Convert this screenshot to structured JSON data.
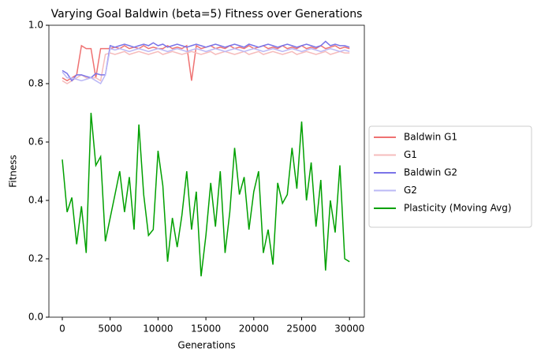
{
  "chart_data": {
    "type": "line",
    "title": "Varying Goal Baldwin (beta=5) Fitness over Generations",
    "x_label": "Generations",
    "y_label": "Fitness",
    "x": [
      0,
      500,
      1000,
      1500,
      2000,
      2500,
      3000,
      3500,
      4000,
      4500,
      5000,
      5500,
      6000,
      6500,
      7000,
      7500,
      8000,
      8500,
      9000,
      9500,
      10000,
      10500,
      11000,
      11500,
      12000,
      12500,
      13000,
      13500,
      14000,
      14500,
      15000,
      15500,
      16000,
      16500,
      17000,
      17500,
      18000,
      18500,
      19000,
      19500,
      20000,
      20500,
      21000,
      21500,
      22000,
      22500,
      23000,
      23500,
      24000,
      24500,
      25000,
      25500,
      26000,
      26500,
      27000,
      27500,
      28000,
      28500,
      29000,
      29500,
      30000
    ],
    "series": [
      {
        "name": "Baldwin G1",
        "color": "#ef7272",
        "values": [
          0.82,
          0.81,
          0.82,
          0.83,
          0.93,
          0.92,
          0.92,
          0.82,
          0.92,
          0.92,
          0.92,
          0.925,
          0.92,
          0.93,
          0.92,
          0.925,
          0.92,
          0.93,
          0.92,
          0.925,
          0.92,
          0.92,
          0.93,
          0.92,
          0.925,
          0.92,
          0.93,
          0.81,
          0.93,
          0.92,
          0.925,
          0.93,
          0.92,
          0.925,
          0.92,
          0.93,
          0.92,
          0.925,
          0.92,
          0.93,
          0.92,
          0.925,
          0.93,
          0.92,
          0.925,
          0.92,
          0.93,
          0.92,
          0.925,
          0.92,
          0.93,
          0.92,
          0.925,
          0.92,
          0.93,
          0.92,
          0.925,
          0.93,
          0.92,
          0.925,
          0.92
        ]
      },
      {
        "name": "G1",
        "color": "#f6bcbc",
        "values": [
          0.81,
          0.8,
          0.81,
          0.82,
          0.83,
          0.82,
          0.82,
          0.82,
          0.81,
          0.9,
          0.905,
          0.9,
          0.905,
          0.91,
          0.9,
          0.905,
          0.91,
          0.905,
          0.9,
          0.905,
          0.91,
          0.9,
          0.905,
          0.91,
          0.905,
          0.9,
          0.905,
          0.91,
          0.905,
          0.9,
          0.905,
          0.91,
          0.9,
          0.905,
          0.91,
          0.905,
          0.9,
          0.905,
          0.91,
          0.9,
          0.905,
          0.91,
          0.9,
          0.905,
          0.91,
          0.905,
          0.9,
          0.905,
          0.91,
          0.9,
          0.905,
          0.91,
          0.905,
          0.9,
          0.905,
          0.91,
          0.9,
          0.905,
          0.91,
          0.905,
          0.905
        ]
      },
      {
        "name": "Baldwin G2",
        "color": "#7a74e8",
        "values": [
          0.845,
          0.835,
          0.81,
          0.83,
          0.83,
          0.825,
          0.82,
          0.835,
          0.83,
          0.83,
          0.93,
          0.925,
          0.93,
          0.935,
          0.93,
          0.925,
          0.93,
          0.935,
          0.93,
          0.94,
          0.93,
          0.935,
          0.925,
          0.93,
          0.935,
          0.93,
          0.925,
          0.93,
          0.935,
          0.93,
          0.925,
          0.93,
          0.935,
          0.93,
          0.925,
          0.93,
          0.935,
          0.93,
          0.925,
          0.935,
          0.93,
          0.925,
          0.93,
          0.935,
          0.93,
          0.925,
          0.93,
          0.935,
          0.93,
          0.925,
          0.93,
          0.935,
          0.93,
          0.925,
          0.93,
          0.945,
          0.93,
          0.935,
          0.93,
          0.93,
          0.925
        ]
      },
      {
        "name": "G2",
        "color": "#bbb8f6",
        "values": [
          0.84,
          0.82,
          0.82,
          0.815,
          0.81,
          0.815,
          0.82,
          0.81,
          0.8,
          0.83,
          0.92,
          0.915,
          0.92,
          0.915,
          0.91,
          0.915,
          0.92,
          0.915,
          0.91,
          0.915,
          0.92,
          0.915,
          0.91,
          0.915,
          0.92,
          0.915,
          0.91,
          0.915,
          0.92,
          0.915,
          0.91,
          0.915,
          0.92,
          0.915,
          0.91,
          0.915,
          0.92,
          0.915,
          0.91,
          0.915,
          0.92,
          0.915,
          0.91,
          0.915,
          0.92,
          0.915,
          0.91,
          0.915,
          0.92,
          0.915,
          0.91,
          0.915,
          0.92,
          0.915,
          0.91,
          0.915,
          0.92,
          0.915,
          0.91,
          0.915,
          0.91
        ]
      },
      {
        "name": "Plasticity (Moving Avg)",
        "color": "#00a000",
        "values": [
          0.54,
          0.36,
          0.41,
          0.25,
          0.38,
          0.22,
          0.7,
          0.52,
          0.55,
          0.26,
          0.34,
          0.42,
          0.5,
          0.36,
          0.48,
          0.3,
          0.66,
          0.42,
          0.28,
          0.3,
          0.57,
          0.45,
          0.19,
          0.34,
          0.24,
          0.35,
          0.5,
          0.3,
          0.43,
          0.14,
          0.28,
          0.46,
          0.31,
          0.5,
          0.22,
          0.36,
          0.58,
          0.42,
          0.48,
          0.3,
          0.43,
          0.5,
          0.22,
          0.3,
          0.18,
          0.46,
          0.39,
          0.42,
          0.58,
          0.44,
          0.67,
          0.4,
          0.53,
          0.31,
          0.47,
          0.16,
          0.4,
          0.29,
          0.52,
          0.2,
          0.19
        ]
      }
    ],
    "xlim": [
      -1400,
      31550
    ],
    "ylim": [
      0,
      1
    ],
    "xticks": [
      0,
      5000,
      10000,
      15000,
      20000,
      25000,
      30000
    ],
    "yticks": [
      {
        "value": 0,
        "label": "0.0"
      },
      0.2,
      0.4,
      0.6,
      0.8,
      {
        "value": 1,
        "label": "1.0"
      }
    ],
    "legend": "outside right"
  }
}
